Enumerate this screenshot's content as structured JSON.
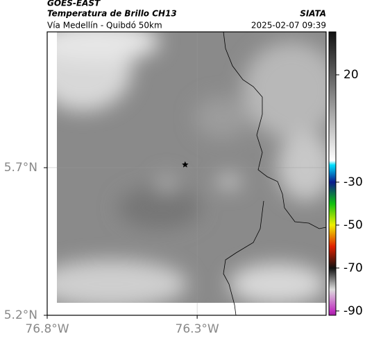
{
  "header": {
    "source": "GOES-EAST",
    "title": "Temperatura de Brillo CH13",
    "subtitle": "Vía Medellín - Quibdó 50km",
    "brand": "SIATA",
    "datetime": "2025-02-07 09:39"
  },
  "map": {
    "lonlim": [
      -76.8,
      -75.87
    ],
    "latlim": [
      5.2,
      6.16
    ],
    "lon_ticks": [
      {
        "value": -76.8,
        "label": "76.8°W"
      },
      {
        "value": -76.3,
        "label": "76.3°W"
      }
    ],
    "lat_ticks": [
      {
        "value": 5.2,
        "label": "5.2°N"
      },
      {
        "value": 5.7,
        "label": "5.7°N"
      }
    ],
    "grid": true,
    "marker": {
      "lon": -76.34,
      "lat": 5.71
    }
  },
  "colorbar": {
    "lim": [
      -92,
      40
    ],
    "ticks": [
      20,
      -30,
      -50,
      -70,
      -90
    ],
    "stops": [
      {
        "value": 40,
        "color": "#111111"
      },
      {
        "value": -20,
        "color": "#ffffff"
      },
      {
        "value": -22,
        "color": "#00e0ff"
      },
      {
        "value": -30,
        "color": "#0a1a8c"
      },
      {
        "value": -40,
        "color": "#10c010"
      },
      {
        "value": -50,
        "color": "#f0f000"
      },
      {
        "value": -60,
        "color": "#e02000"
      },
      {
        "value": -70,
        "color": "#111111"
      },
      {
        "value": -80,
        "color": "#dddddd"
      },
      {
        "value": -90,
        "color": "#c030c0"
      },
      {
        "value": -92,
        "color": "#a020a0"
      }
    ]
  }
}
